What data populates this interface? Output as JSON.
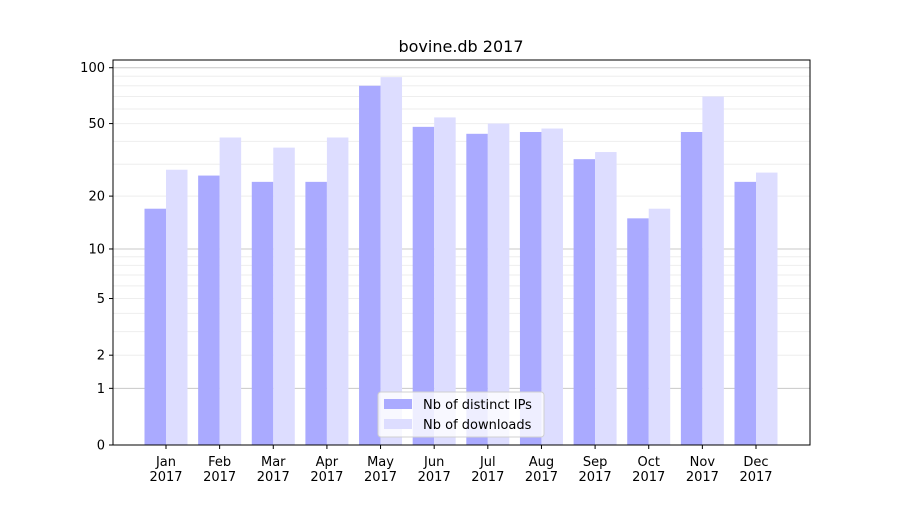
{
  "chart_data": {
    "type": "bar",
    "title": "bovine.db 2017",
    "xlabel": "",
    "ylabel": "",
    "yscale": "log(1+y)",
    "ylim": [
      0,
      110
    ],
    "yticks": [
      0,
      1,
      2,
      5,
      10,
      20,
      50,
      100
    ],
    "grid": true,
    "legend_position": "bottom-center",
    "categories": [
      "Jan\n2017",
      "Feb\n2017",
      "Mar\n2017",
      "Apr\n2017",
      "May\n2017",
      "Jun\n2017",
      "Jul\n2017",
      "Aug\n2017",
      "Sep\n2017",
      "Oct\n2017",
      "Nov\n2017",
      "Dec\n2017"
    ],
    "series": [
      {
        "name": "Nb of distinct IPs",
        "color": "#aaaaff",
        "values": [
          17,
          26,
          24,
          24,
          80,
          48,
          44,
          45,
          32,
          15,
          45,
          24
        ]
      },
      {
        "name": "Nb of downloads",
        "color": "#ddddff",
        "values": [
          28,
          42,
          37,
          42,
          89,
          54,
          50,
          47,
          35,
          17,
          70,
          27
        ]
      }
    ]
  }
}
